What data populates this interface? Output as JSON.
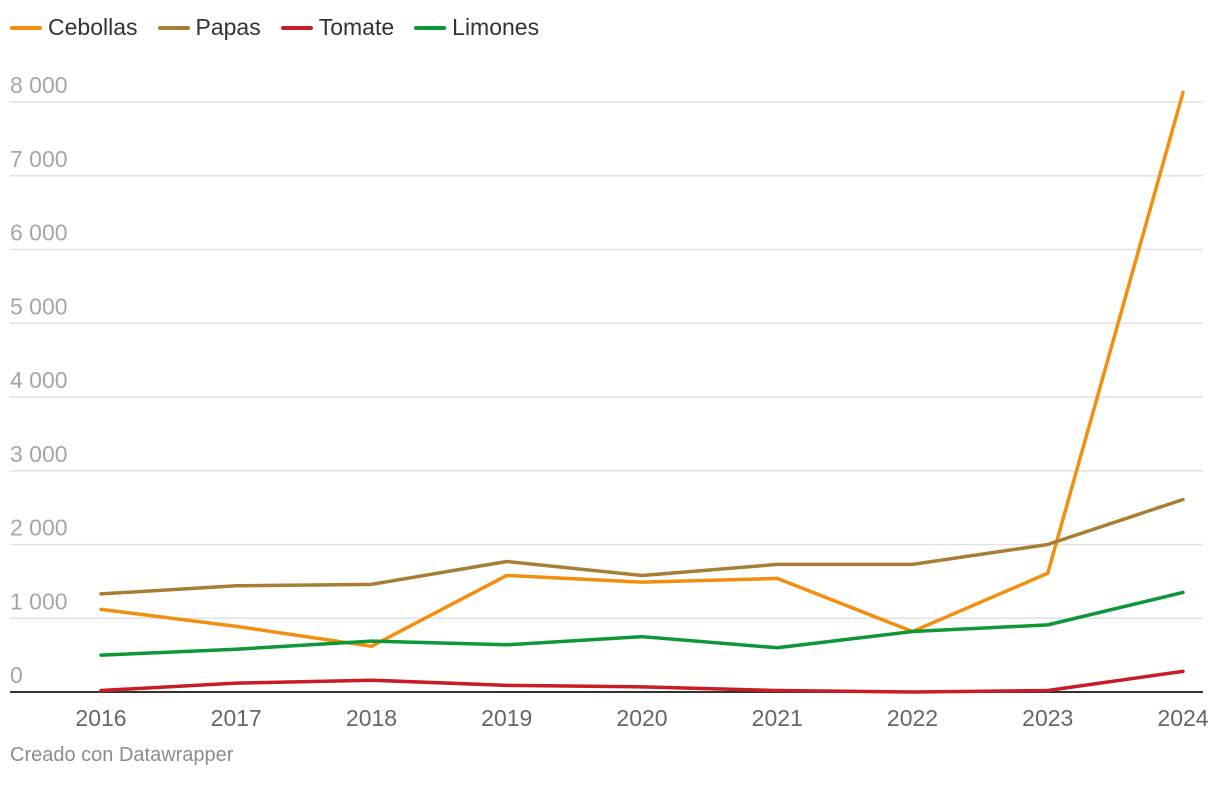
{
  "chart_data": {
    "type": "line",
    "title": "",
    "xlabel": "",
    "ylabel": "",
    "categories": [
      "2016",
      "2017",
      "2018",
      "2019",
      "2020",
      "2021",
      "2022",
      "2023",
      "2024"
    ],
    "y_ticks": [
      0,
      1000,
      2000,
      3000,
      4000,
      5000,
      6000,
      7000,
      8000
    ],
    "y_tick_labels": [
      "0",
      "1 000",
      "2 000",
      "3 000",
      "4 000",
      "5 000",
      "6 000",
      "7 000",
      "8 000"
    ],
    "ylim": [
      0,
      8000
    ],
    "grid": true,
    "legend_position": "top-left",
    "series": [
      {
        "name": "Cebollas",
        "color": "#f28f0e",
        "values": [
          1120,
          890,
          620,
          1580,
          1490,
          1540,
          820,
          1610,
          8130
        ]
      },
      {
        "name": "Papas",
        "color": "#a87f32",
        "values": [
          1330,
          1440,
          1460,
          1770,
          1580,
          1730,
          1730,
          2000,
          2610
        ]
      },
      {
        "name": "Tomate",
        "color": "#c81d25",
        "values": [
          20,
          120,
          160,
          90,
          70,
          20,
          0,
          20,
          280
        ]
      },
      {
        "name": "Limones",
        "color": "#0c9837",
        "values": [
          500,
          580,
          690,
          640,
          750,
          600,
          820,
          910,
          1350
        ]
      }
    ]
  },
  "footer": {
    "credit": "Creado con Datawrapper"
  }
}
